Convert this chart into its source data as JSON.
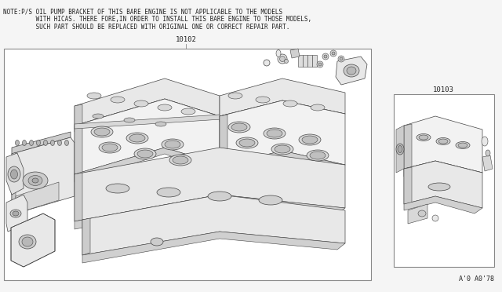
{
  "bg_color": "#f5f5f5",
  "note_line1": "NOTE:P/S OIL PUMP BRACKET OF THIS BARE ENGINE IS NOT APPLICABLE TO THE MODELS",
  "note_line2": "         WITH HICAS. THERE FORE,IN ORDER TO INSTALL THIS BARE ENGINE TO THOSE MODELS,",
  "note_line3": "         SUCH PART SHOULD BE REPLACED WITH ORIGINAL ONE OR CORRECT REPAIR PART.",
  "label_bare": "10102",
  "label_short": "10103",
  "footer": "A'0 A0'78",
  "note_fontsize": 5.5,
  "label_fontsize": 6.5,
  "footer_fontsize": 6.0,
  "edge_color": "#888888",
  "text_color": "#222222",
  "part_fill": "#e8e8e8",
  "part_edge": "#444444",
  "part_dark": "#cccccc",
  "part_light": "#f2f2f2"
}
